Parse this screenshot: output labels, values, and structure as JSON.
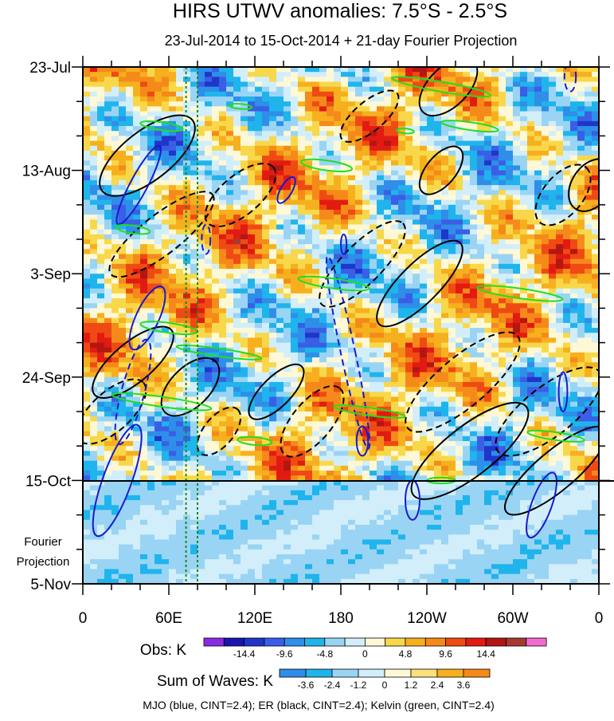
{
  "chart_data": {
    "type": "heatmap",
    "title": "HIRS UTWV anomalies: 7.5°S - 2.5°S",
    "subtitle": "23-Jul-2014 to 15-Oct-2014 + 21-day Fourier Projection",
    "x_ticks": [
      "0",
      "60E",
      "120E",
      "180",
      "120W",
      "60W",
      "0"
    ],
    "x_lon": [
      0,
      60,
      120,
      180,
      240,
      300,
      360
    ],
    "y_ticks": [
      "23-Jul",
      "13-Aug",
      "3-Sep",
      "24-Sep",
      "15-Oct",
      "5-Nov"
    ],
    "y_days": [
      0,
      21,
      42,
      63,
      84,
      105
    ],
    "projection_label": [
      "Fourier",
      "Projection"
    ],
    "projection_start_day": 84,
    "day_range": [
      0,
      105
    ],
    "lon_range": [
      0,
      360
    ],
    "marker_lons": [
      72,
      80
    ],
    "marker_color": "#1a8a1a",
    "obs_label": "Obs: K",
    "obs_colors": [
      "#8a2be2",
      "#1a14b0",
      "#1f36c8",
      "#3a5ee6",
      "#2f8ee8",
      "#1fb4ec",
      "#9ad4f4",
      "#d2eefa",
      "#fff8d6",
      "#f8d84a",
      "#f6b01e",
      "#f58a1a",
      "#ef4a14",
      "#e21b12",
      "#b41612",
      "#a53a32",
      "#f06ad2"
    ],
    "obs_tick_labels": [
      "-14.4",
      "-9.6",
      "-4.8",
      "0",
      "4.8",
      "9.6",
      "14.4"
    ],
    "waves_label": "Sum of Waves: K",
    "waves_colors": [
      "#2f8ee8",
      "#1fb4ec",
      "#9ad4f4",
      "#d2eefa",
      "#fff8d6",
      "#fce07a",
      "#f6b01e",
      "#f58a1a"
    ],
    "waves_tick_labels": [
      "-3.6",
      "-2.4",
      "-1.2",
      "0",
      "1.2",
      "2.4",
      "3.6"
    ],
    "footer": "MJO (blue, CINT=2.4); ER (black, CINT=2.4); Kelvin (green, CINT=2.4)",
    "contour_colors": {
      "mjo": "#1a1acc",
      "er": "#000000",
      "kelvin": "#22dd22"
    },
    "series": [
      {
        "name": "MJO (blue)",
        "type": "contour",
        "color": "#1a1acc"
      },
      {
        "name": "ER (black)",
        "type": "contour",
        "color": "#000000"
      },
      {
        "name": "Kelvin (green)",
        "type": "contour",
        "color": "#22dd22"
      }
    ],
    "mjo_contours": [
      {
        "lon": 39,
        "day": 24,
        "rl": 6,
        "rd": 9,
        "rot": 28,
        "dash": false
      },
      {
        "lon": 35,
        "day": 66,
        "rl": 8,
        "rd": 11,
        "rot": 15,
        "dash": true
      },
      {
        "lon": 24,
        "day": 84,
        "rl": 10,
        "rd": 12,
        "rot": 20,
        "dash": false
      },
      {
        "lon": 45,
        "day": 51,
        "rl": 8,
        "rd": 7,
        "rot": 25,
        "dash": false
      },
      {
        "lon": 86,
        "day": 35,
        "rl": 3,
        "rd": 3,
        "rot": 0,
        "dash": true
      },
      {
        "lon": 142,
        "day": 25,
        "rl": 4,
        "rd": 3,
        "rot": 30,
        "dash": false
      },
      {
        "lon": 185,
        "day": 58,
        "rl": 5,
        "rd": 20,
        "rot": -12,
        "dash": true
      },
      {
        "lon": 195,
        "day": 76,
        "rl": 4,
        "rd": 3,
        "rot": 0,
        "dash": false
      },
      {
        "lon": 230,
        "day": 88,
        "rl": 5,
        "rd": 4,
        "rot": 0,
        "dash": false
      },
      {
        "lon": 320,
        "day": 89,
        "rl": 7,
        "rd": 7,
        "rot": 20,
        "dash": false
      },
      {
        "lon": 340,
        "day": 2,
        "rl": 4,
        "rd": 3,
        "rot": 0,
        "dash": true
      },
      {
        "lon": 182,
        "day": 36,
        "rl": 2,
        "rd": 2,
        "rot": 0,
        "dash": false
      },
      {
        "lon": 335,
        "day": 66,
        "rl": 3,
        "rd": 4,
        "rot": 0,
        "dash": false
      }
    ],
    "er_contours": [
      {
        "lon": 45,
        "day": 18,
        "rl": 40,
        "rd": 5,
        "rot": -38,
        "dash": false
      },
      {
        "lon": 55,
        "day": 34,
        "rl": 45,
        "rd": 4,
        "rot": -38,
        "dash": true
      },
      {
        "lon": 35,
        "day": 60,
        "rl": 35,
        "rd": 4,
        "rot": -40,
        "dash": false
      },
      {
        "lon": 20,
        "day": 70,
        "rl": 30,
        "rd": 4,
        "rot": -42,
        "dash": true
      },
      {
        "lon": 75,
        "day": 65,
        "rl": 25,
        "rd": 4,
        "rot": -45,
        "dash": false
      },
      {
        "lon": 95,
        "day": 74,
        "rl": 20,
        "rd": 3,
        "rot": -50,
        "dash": true
      },
      {
        "lon": 135,
        "day": 66,
        "rl": 25,
        "rd": 3,
        "rot": -45,
        "dash": false
      },
      {
        "lon": 160,
        "day": 72,
        "rl": 30,
        "rd": 4,
        "rot": -50,
        "dash": true
      },
      {
        "lon": 195,
        "day": 40,
        "rl": 40,
        "rd": 4,
        "rot": -45,
        "dash": true
      },
      {
        "lon": 235,
        "day": 44,
        "rl": 40,
        "rd": 4,
        "rot": -45,
        "dash": false
      },
      {
        "lon": 265,
        "day": 64,
        "rl": 50,
        "rd": 5,
        "rot": -40,
        "dash": true
      },
      {
        "lon": 270,
        "day": 78,
        "rl": 50,
        "rd": 5,
        "rot": -38,
        "dash": false
      },
      {
        "lon": 325,
        "day": 70,
        "rl": 45,
        "rd": 5,
        "rot": -38,
        "dash": true
      },
      {
        "lon": 330,
        "day": 82,
        "rl": 45,
        "rd": 4,
        "rot": -40,
        "dash": false
      },
      {
        "lon": 200,
        "day": 10,
        "rl": 25,
        "rd": 3,
        "rot": -40,
        "dash": true
      },
      {
        "lon": 255,
        "day": 4,
        "rl": 25,
        "rd": 4,
        "rot": -45,
        "dash": false
      },
      {
        "lon": 335,
        "day": 26,
        "rl": 25,
        "rd": 4,
        "rot": -50,
        "dash": true
      },
      {
        "lon": 355,
        "day": 24,
        "rl": 20,
        "rd": 4,
        "rot": -55,
        "dash": false
      },
      {
        "lon": 110,
        "day": 26,
        "rl": 30,
        "rd": 4,
        "rot": -40,
        "dash": true
      },
      {
        "lon": 250,
        "day": 21,
        "rl": 20,
        "rd": 3,
        "rot": -50,
        "dash": false
      }
    ],
    "kelvin_contours": [
      {
        "lon": 170,
        "day": 20,
        "rl": 18,
        "rd": 1.0,
        "rot": 8
      },
      {
        "lon": 250,
        "day": 4,
        "rl": 35,
        "rd": 1.0,
        "rot": 10
      },
      {
        "lon": 270,
        "day": 12,
        "rl": 20,
        "rd": 0.8,
        "rot": 8
      },
      {
        "lon": 55,
        "day": 12,
        "rl": 15,
        "rd": 0.8,
        "rot": 8
      },
      {
        "lon": 35,
        "day": 33,
        "rl": 12,
        "rd": 0.8,
        "rot": 8
      },
      {
        "lon": 175,
        "day": 44,
        "rl": 25,
        "rd": 1.0,
        "rot": 8
      },
      {
        "lon": 305,
        "day": 46,
        "rl": 30,
        "rd": 1.0,
        "rot": 8
      },
      {
        "lon": 60,
        "day": 53,
        "rl": 20,
        "rd": 1.0,
        "rot": 8
      },
      {
        "lon": 95,
        "day": 58,
        "rl": 30,
        "rd": 0.8,
        "rot": 8
      },
      {
        "lon": 55,
        "day": 68,
        "rl": 35,
        "rd": 1.0,
        "rot": 8
      },
      {
        "lon": 200,
        "day": 70,
        "rl": 25,
        "rd": 0.8,
        "rot": 8
      },
      {
        "lon": 330,
        "day": 75,
        "rl": 20,
        "rd": 0.8,
        "rot": 8
      },
      {
        "lon": 120,
        "day": 76,
        "rl": 12,
        "rd": 0.8,
        "rot": 5
      },
      {
        "lon": 250,
        "day": 84,
        "rl": 10,
        "rd": 0.6,
        "rot": 0
      },
      {
        "lon": 110,
        "day": 8,
        "rl": 8,
        "rd": 0.5,
        "rot": 5
      },
      {
        "lon": 225,
        "day": 13,
        "rl": 6,
        "rd": 0.5,
        "rot": 5
      }
    ]
  }
}
